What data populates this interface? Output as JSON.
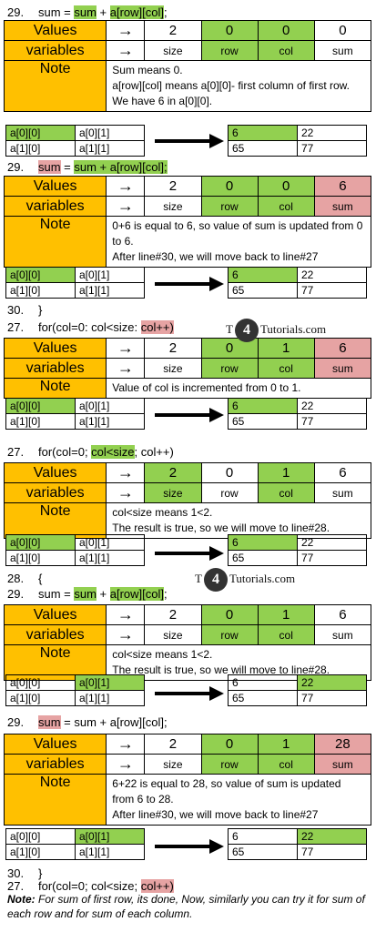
{
  "steps": [
    {
      "line_num": "29.",
      "code": [
        {
          "t": "sum = ",
          "h": ""
        },
        {
          "t": "sum",
          "h": "g"
        },
        {
          "t": " + ",
          "h": ""
        },
        {
          "t": "a[row][col]",
          "h": "g"
        },
        {
          "t": ";",
          "h": ""
        }
      ],
      "values": [
        "2",
        "0",
        "0",
        "0"
      ],
      "value_hl": [
        "",
        "g",
        "g",
        ""
      ],
      "vars": [
        "size",
        "row",
        "col",
        "sum"
      ],
      "var_hl": [
        "",
        "g",
        "g",
        ""
      ],
      "note": [
        "Sum means 0.",
        "a[row][col] means  a[0][0]- first column of first row.",
        "We have 6 in a[0][0]."
      ],
      "labels": [
        "a[0][0]",
        "a[0][1]",
        "a[1][0]",
        "a[1][1]"
      ],
      "labels_hl": [
        "g",
        "",
        "",
        ""
      ],
      "matrix": [
        "6",
        "22",
        "65",
        "77"
      ],
      "matrix_hl": [
        "g",
        "",
        "",
        ""
      ]
    },
    {
      "line_num": "29.",
      "code": [
        {
          "t": "sum",
          "h": "r"
        },
        {
          "t": " = ",
          "h": ""
        },
        {
          "t": "sum + a[row][col];",
          "h": "g"
        }
      ],
      "values": [
        "2",
        "0",
        "0",
        "6"
      ],
      "value_hl": [
        "",
        "g",
        "g",
        "r"
      ],
      "vars": [
        "size",
        "row",
        "col",
        "sum"
      ],
      "var_hl": [
        "",
        "g",
        "g",
        "r"
      ],
      "note": [
        "0+6 is equal to 6, so value of sum is updated from 0 to 6.",
        "After line#30, we will move back to line#27"
      ],
      "labels": [
        "a[0][0]",
        "a[0][1]",
        "a[1][0]",
        "a[1][1]"
      ],
      "labels_hl": [
        "g",
        "",
        "",
        ""
      ],
      "matrix": [
        "6",
        "22",
        "65",
        "77"
      ],
      "matrix_hl": [
        "g",
        "",
        "",
        ""
      ]
    },
    {
      "line_num": "27.",
      "code": [
        {
          "t": "for(col=0: col<size: ",
          "h": ""
        },
        {
          "t": "col++)",
          "h": "r"
        }
      ],
      "values": [
        "2",
        "0",
        "1",
        "6"
      ],
      "value_hl": [
        "",
        "g",
        "g",
        "r"
      ],
      "vars": [
        "size",
        "row",
        "col",
        "sum"
      ],
      "var_hl": [
        "",
        "g",
        "g",
        "r"
      ],
      "note": [
        "Value of col is incremented from 0 to 1."
      ],
      "labels": [
        "a[0][0]",
        "a[0][1]",
        "a[1][0]",
        "a[1][1]"
      ],
      "labels_hl": [
        "g",
        "",
        "",
        ""
      ],
      "matrix": [
        "6",
        "22",
        "65",
        "77"
      ],
      "matrix_hl": [
        "g",
        "",
        "",
        ""
      ]
    },
    {
      "line_num": "27.",
      "code": [
        {
          "t": "for(col=0; ",
          "h": ""
        },
        {
          "t": "col<size",
          "h": "g"
        },
        {
          "t": "; col++)",
          "h": ""
        }
      ],
      "values": [
        "2",
        "0",
        "1",
        "6"
      ],
      "value_hl": [
        "g",
        "",
        "g",
        ""
      ],
      "vars": [
        "size",
        "row",
        "col",
        "sum"
      ],
      "var_hl": [
        "g",
        "",
        "g",
        ""
      ],
      "note": [
        "col<size means  1<2.",
        "The result is true, so we will move to line#28."
      ],
      "labels": [
        "a[0][0]",
        "a[0][1]",
        "a[1][0]",
        "a[1][1]"
      ],
      "labels_hl": [
        "g",
        "",
        "",
        ""
      ],
      "matrix": [
        "6",
        "22",
        "65",
        "77"
      ],
      "matrix_hl": [
        "g",
        "",
        "",
        ""
      ]
    },
    {
      "line_num": "29.",
      "code": [
        {
          "t": "sum = ",
          "h": ""
        },
        {
          "t": "sum",
          "h": "g"
        },
        {
          "t": " + ",
          "h": ""
        },
        {
          "t": "a[row][col]",
          "h": "g"
        },
        {
          "t": ";",
          "h": ""
        }
      ],
      "values": [
        "2",
        "0",
        "1",
        "6"
      ],
      "value_hl": [
        "",
        "g",
        "g",
        ""
      ],
      "vars": [
        "size",
        "row",
        "col",
        "sum"
      ],
      "var_hl": [
        "",
        "g",
        "g",
        ""
      ],
      "note": [
        "col<size means  1<2.",
        "The result is true, so we will move to line#28."
      ],
      "labels": [
        "a[0][0]",
        "a[0][1]",
        "a[1][0]",
        "a[1][1]"
      ],
      "labels_hl": [
        "",
        "g",
        "",
        ""
      ],
      "matrix": [
        "6",
        "22",
        "65",
        "77"
      ],
      "matrix_hl": [
        "",
        "g",
        "",
        ""
      ]
    },
    {
      "line_num": "29.",
      "code": [
        {
          "t": "sum",
          "h": "r"
        },
        {
          "t": " = sum + a[row][col];",
          "h": ""
        }
      ],
      "values": [
        "2",
        "0",
        "1",
        "28"
      ],
      "value_hl": [
        "",
        "g",
        "g",
        "r"
      ],
      "vars": [
        "size",
        "row",
        "col",
        "sum"
      ],
      "var_hl": [
        "",
        "g",
        "g",
        "r"
      ],
      "note": [
        "6+22 is equal to 28, so value of sum is updated from 6 to 28.",
        "After line#30, we will move back to line#27"
      ],
      "labels": [
        "a[0][0]",
        "a[0][1]",
        "a[1][0]",
        "a[1][1]"
      ],
      "labels_hl": [
        "",
        "g",
        "",
        ""
      ],
      "matrix": [
        "6",
        "22",
        "65",
        "77"
      ],
      "matrix_hl": [
        "",
        "g",
        "",
        ""
      ]
    }
  ],
  "extra_lines": [
    {
      "n": "30.",
      "t": "}"
    },
    {
      "n": "27.",
      "t": "for(col=0: col<size: col++)"
    },
    {
      "n": "27.",
      "t": "for(col=0; col<size; col++)"
    },
    {
      "n": "28.",
      "t": "{"
    },
    {
      "n": "30.",
      "t": "}"
    }
  ],
  "final_code": [
    {
      "t": "for(col=0; col<size; ",
      "h": ""
    },
    {
      "t": "col++)",
      "h": "r"
    }
  ],
  "label_values": "Values",
  "label_variables": "variables",
  "label_note": "Note",
  "watermark": {
    "pre": "T",
    "ball": "4",
    "post": "Tutorials.com"
  },
  "footer_note_label": "Note:",
  "footer_note_text": " For sum of first row, its done, Now, similarly you can try it for sum of each row and for sum of each column."
}
